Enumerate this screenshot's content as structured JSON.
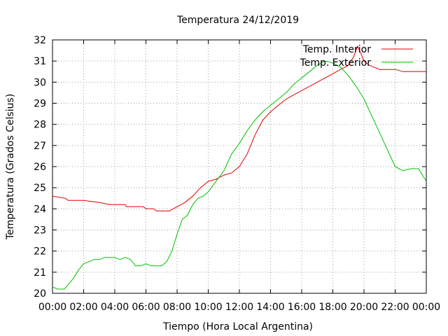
{
  "chart_data": {
    "type": "line",
    "title": "Temperatura 24/12/2019",
    "xlabel": "Tiempo (Hora Local Argentina)",
    "ylabel": "Temperatura (Grados Celsius)",
    "xlim": [
      "00:00",
      "24:00"
    ],
    "ylim": [
      20,
      32
    ],
    "x_ticks": [
      "00:00",
      "02:00",
      "04:00",
      "06:00",
      "08:00",
      "10:00",
      "12:00",
      "14:00",
      "16:00",
      "18:00",
      "20:00",
      "22:00",
      "00:00"
    ],
    "y_ticks": [
      "20",
      "21",
      "22",
      "23",
      "24",
      "25",
      "26",
      "27",
      "28",
      "29",
      "30",
      "31",
      "32"
    ],
    "grid": true,
    "legend_position": "top-right",
    "series": [
      {
        "name": "Temp. Interior",
        "color": "#e00000",
        "points": [
          [
            "00:00",
            24.6
          ],
          [
            "00:50",
            24.5
          ],
          [
            "01:00",
            24.4
          ],
          [
            "02:00",
            24.4
          ],
          [
            "03:00",
            24.3
          ],
          [
            "03:40",
            24.2
          ],
          [
            "04:40",
            24.2
          ],
          [
            "04:45",
            24.1
          ],
          [
            "05:50",
            24.1
          ],
          [
            "06:00",
            24.0
          ],
          [
            "06:30",
            24.0
          ],
          [
            "06:40",
            23.9
          ],
          [
            "07:30",
            23.9
          ],
          [
            "07:45",
            24.0
          ],
          [
            "08:00",
            24.1
          ],
          [
            "08:30",
            24.3
          ],
          [
            "09:00",
            24.6
          ],
          [
            "09:30",
            25.0
          ],
          [
            "10:00",
            25.3
          ],
          [
            "10:30",
            25.4
          ],
          [
            "11:00",
            25.6
          ],
          [
            "11:30",
            25.7
          ],
          [
            "12:00",
            26.0
          ],
          [
            "12:30",
            26.6
          ],
          [
            "13:00",
            27.5
          ],
          [
            "13:30",
            28.2
          ],
          [
            "14:00",
            28.6
          ],
          [
            "14:30",
            28.9
          ],
          [
            "15:00",
            29.2
          ],
          [
            "15:30",
            29.4
          ],
          [
            "16:00",
            29.6
          ],
          [
            "16:30",
            29.8
          ],
          [
            "17:00",
            30.0
          ],
          [
            "17:30",
            30.2
          ],
          [
            "18:00",
            30.4
          ],
          [
            "18:30",
            30.6
          ],
          [
            "19:00",
            30.8
          ],
          [
            "19:20",
            31.2
          ],
          [
            "19:35",
            31.7
          ],
          [
            "19:50",
            31.3
          ],
          [
            "20:00",
            31.0
          ],
          [
            "20:20",
            30.8
          ],
          [
            "20:40",
            30.7
          ],
          [
            "21:00",
            30.6
          ],
          [
            "22:00",
            30.6
          ],
          [
            "22:30",
            30.5
          ],
          [
            "24:00",
            30.5
          ]
        ]
      },
      {
        "name": "Temp. Exterior",
        "color": "#00c000",
        "points": [
          [
            "00:00",
            20.3
          ],
          [
            "00:20",
            20.2
          ],
          [
            "00:45",
            20.2
          ],
          [
            "01:00",
            20.4
          ],
          [
            "01:20",
            20.7
          ],
          [
            "01:40",
            21.1
          ],
          [
            "02:00",
            21.4
          ],
          [
            "02:20",
            21.5
          ],
          [
            "02:40",
            21.6
          ],
          [
            "03:00",
            21.6
          ],
          [
            "03:20",
            21.7
          ],
          [
            "03:40",
            21.7
          ],
          [
            "04:00",
            21.7
          ],
          [
            "04:20",
            21.6
          ],
          [
            "04:40",
            21.7
          ],
          [
            "05:00",
            21.6
          ],
          [
            "05:20",
            21.3
          ],
          [
            "05:40",
            21.3
          ],
          [
            "06:00",
            21.4
          ],
          [
            "06:20",
            21.3
          ],
          [
            "06:40",
            21.3
          ],
          [
            "07:00",
            21.3
          ],
          [
            "07:20",
            21.5
          ],
          [
            "07:40",
            22.0
          ],
          [
            "08:00",
            22.8
          ],
          [
            "08:20",
            23.5
          ],
          [
            "08:40",
            23.7
          ],
          [
            "09:00",
            24.2
          ],
          [
            "09:20",
            24.5
          ],
          [
            "09:40",
            24.6
          ],
          [
            "10:00",
            24.8
          ],
          [
            "10:30",
            25.3
          ],
          [
            "11:00",
            25.8
          ],
          [
            "11:30",
            26.6
          ],
          [
            "12:00",
            27.1
          ],
          [
            "12:30",
            27.7
          ],
          [
            "13:00",
            28.2
          ],
          [
            "13:30",
            28.6
          ],
          [
            "14:00",
            28.9
          ],
          [
            "14:30",
            29.2
          ],
          [
            "15:00",
            29.5
          ],
          [
            "15:30",
            29.9
          ],
          [
            "16:00",
            30.2
          ],
          [
            "16:30",
            30.5
          ],
          [
            "17:00",
            30.8
          ],
          [
            "17:30",
            31.0
          ],
          [
            "18:00",
            30.9
          ],
          [
            "18:30",
            30.7
          ],
          [
            "19:00",
            30.3
          ],
          [
            "19:30",
            29.8
          ],
          [
            "20:00",
            29.2
          ],
          [
            "20:30",
            28.4
          ],
          [
            "21:00",
            27.6
          ],
          [
            "21:30",
            26.8
          ],
          [
            "22:00",
            26.0
          ],
          [
            "22:30",
            25.8
          ],
          [
            "23:00",
            25.9
          ],
          [
            "23:30",
            25.9
          ],
          [
            "24:00",
            25.3
          ]
        ]
      }
    ]
  }
}
